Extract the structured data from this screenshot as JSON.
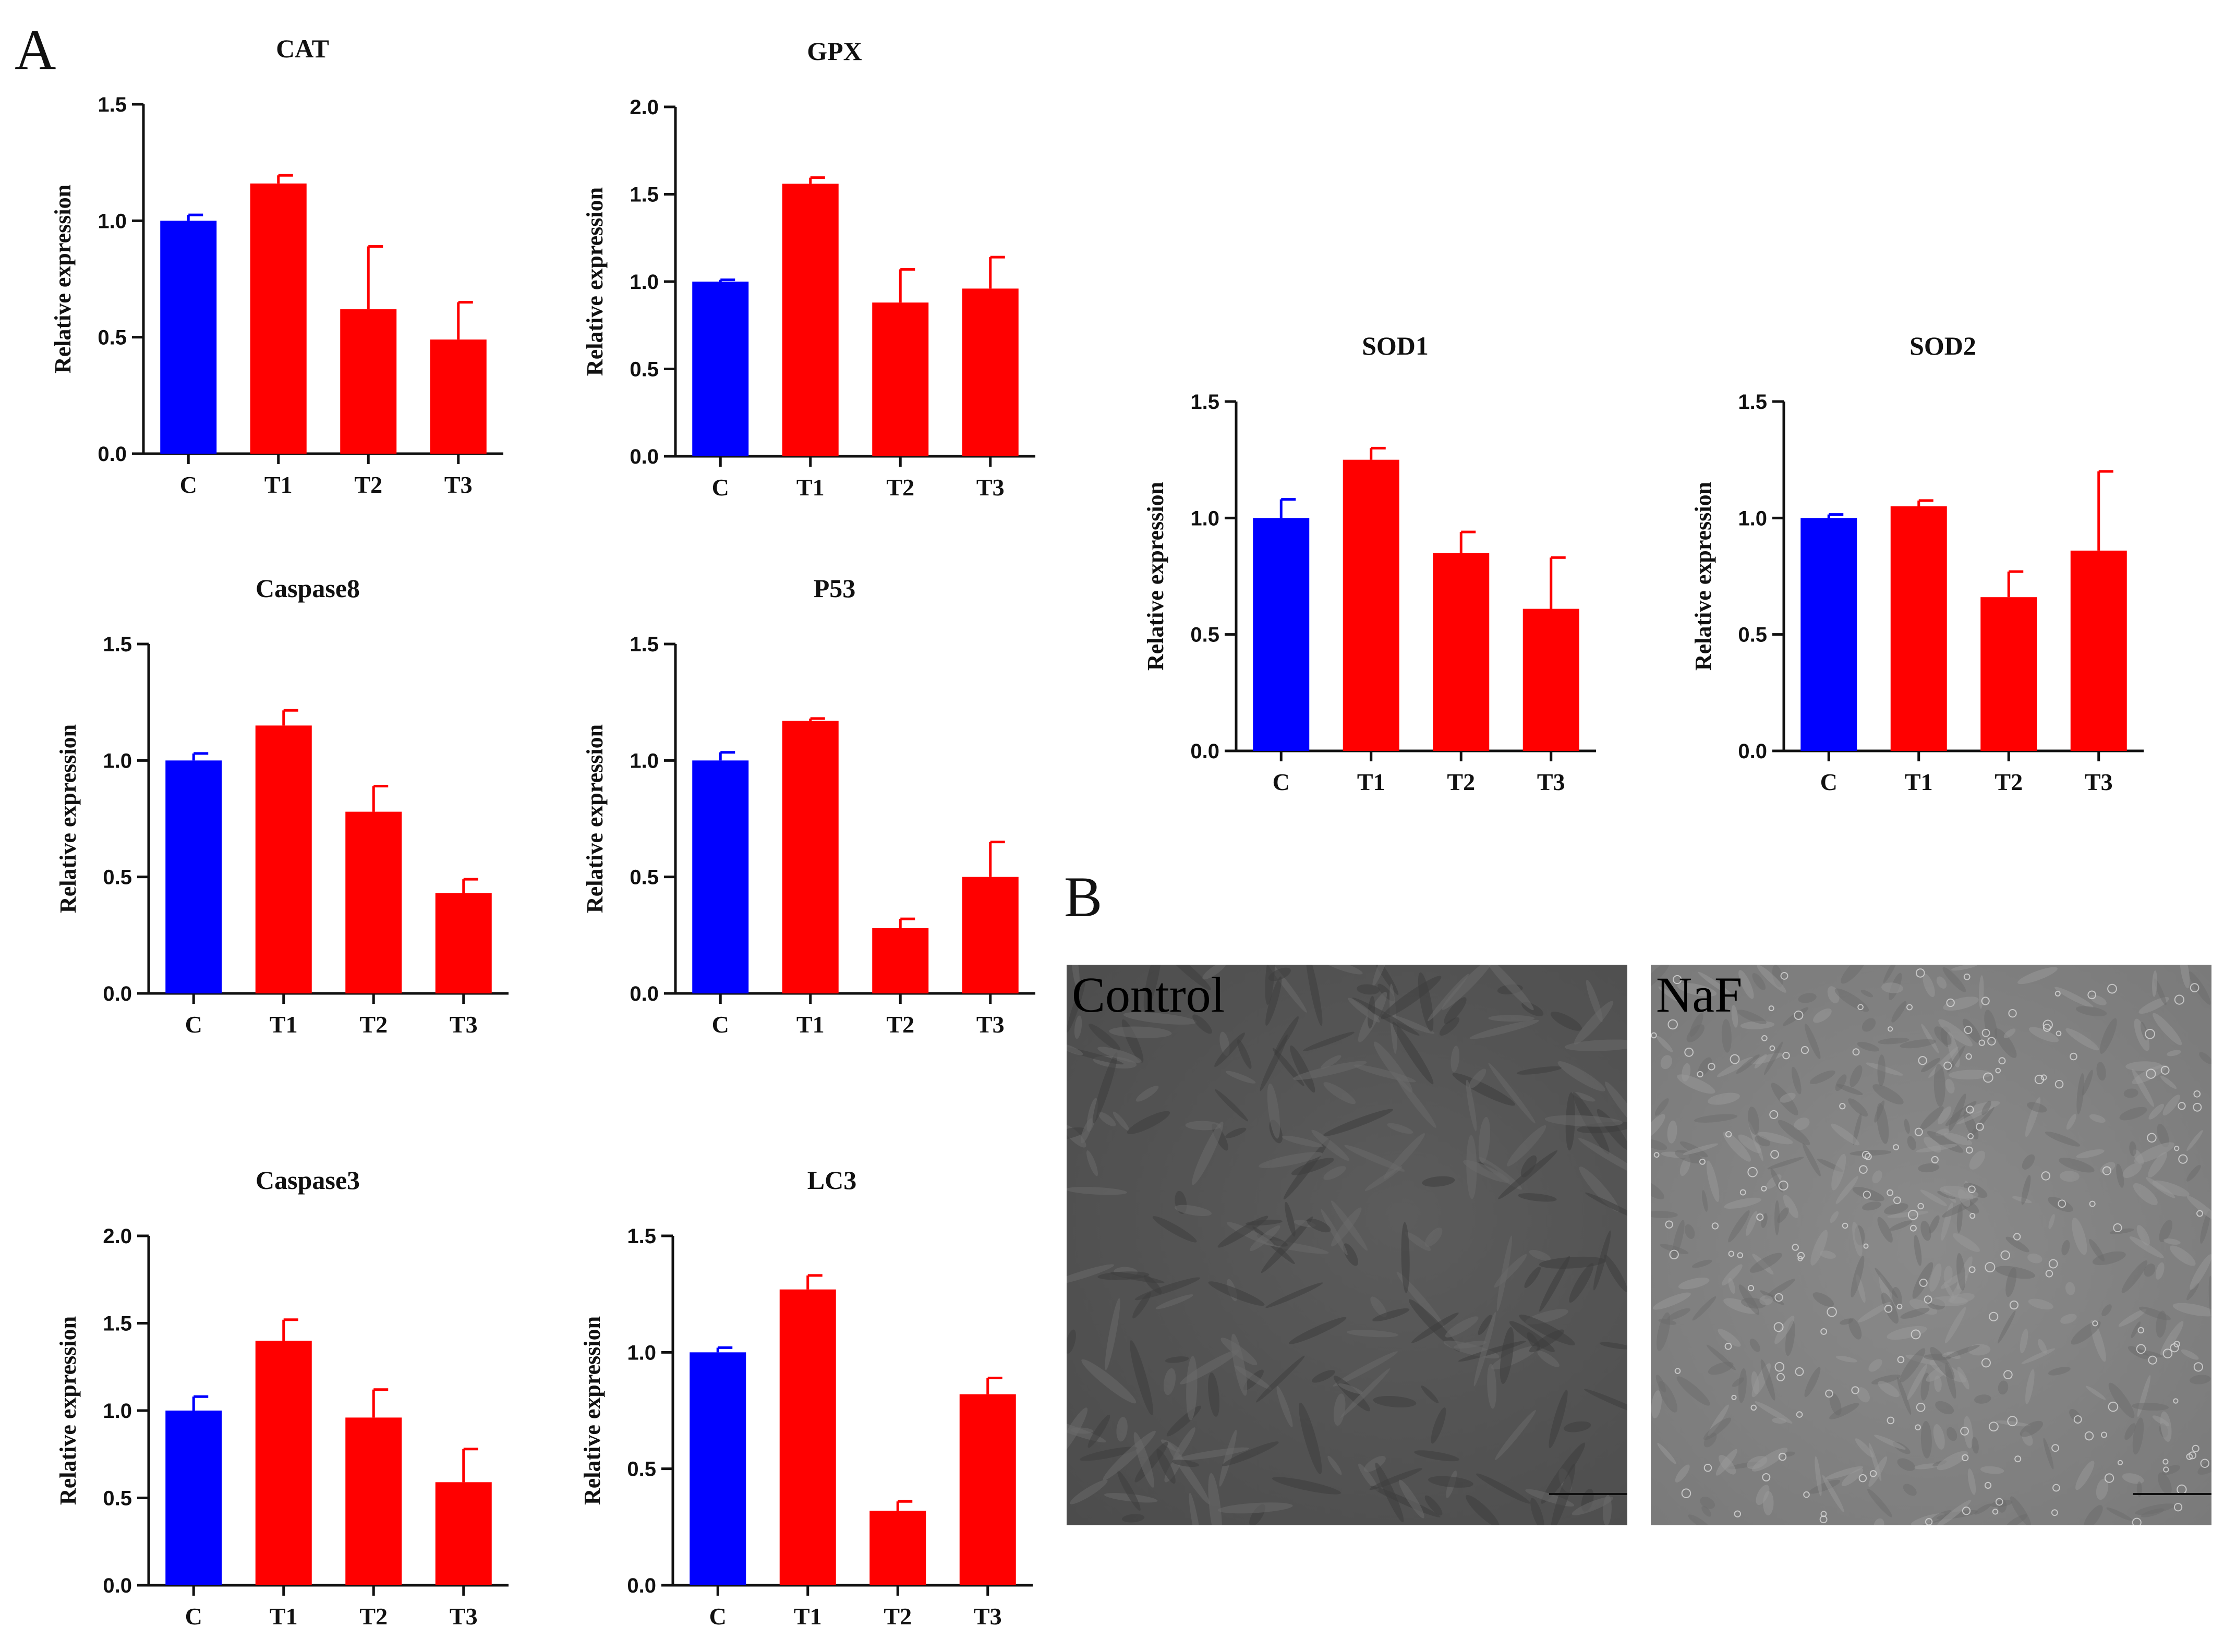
{
  "panels": {
    "a": "A",
    "b": "B"
  },
  "colors": {
    "control_bar": "#0000ff",
    "treatment_bar": "#ff0000",
    "axis": "#111111"
  },
  "chart_data": [
    {
      "id": "cat",
      "type": "bar",
      "title": "CAT",
      "ylabel": "Relative expression",
      "categories": [
        "C",
        "T1",
        "T2",
        "T3"
      ],
      "values": [
        1.0,
        1.16,
        0.62,
        0.49
      ],
      "errors": [
        0.025,
        0.035,
        0.27,
        0.16
      ],
      "ylim": [
        0,
        1.5
      ],
      "yticks": [
        "0.0",
        "0.5",
        "1.0",
        "1.5"
      ]
    },
    {
      "id": "gpx",
      "type": "bar",
      "title": "GPX",
      "ylabel": "Relative expression",
      "categories": [
        "C",
        "T1",
        "T2",
        "T3"
      ],
      "values": [
        1.0,
        1.56,
        0.88,
        0.96
      ],
      "errors": [
        0.01,
        0.035,
        0.19,
        0.18
      ],
      "ylim": [
        0,
        2.0
      ],
      "yticks": [
        "0.0",
        "0.5",
        "1.0",
        "1.5",
        "2.0"
      ]
    },
    {
      "id": "sod1",
      "type": "bar",
      "title": "SOD1",
      "ylabel": "Relative expression",
      "categories": [
        "C",
        "T1",
        "T2",
        "T3"
      ],
      "values": [
        1.0,
        1.25,
        0.85,
        0.61
      ],
      "errors": [
        0.08,
        0.05,
        0.09,
        0.22
      ],
      "ylim": [
        0,
        1.5
      ],
      "yticks": [
        "0.0",
        "0.5",
        "1.0",
        "1.5"
      ]
    },
    {
      "id": "sod2",
      "type": "bar",
      "title": "SOD2",
      "ylabel": "Relative expression",
      "categories": [
        "C",
        "T1",
        "T2",
        "T3"
      ],
      "values": [
        1.0,
        1.05,
        0.66,
        0.86
      ],
      "errors": [
        0.015,
        0.025,
        0.11,
        0.34
      ],
      "ylim": [
        0,
        1.5
      ],
      "yticks": [
        "0.0",
        "0.5",
        "1.0",
        "1.5"
      ]
    },
    {
      "id": "casp8",
      "type": "bar",
      "title": "Caspase8",
      "ylabel": "Relative expression",
      "categories": [
        "C",
        "T1",
        "T2",
        "T3"
      ],
      "values": [
        1.0,
        1.15,
        0.78,
        0.43
      ],
      "errors": [
        0.03,
        0.065,
        0.11,
        0.06
      ],
      "ylim": [
        0,
        1.5
      ],
      "yticks": [
        "0.0",
        "0.5",
        "1.0",
        "1.5"
      ]
    },
    {
      "id": "p53",
      "type": "bar",
      "title": "P53",
      "ylabel": "Relative expression",
      "categories": [
        "C",
        "T1",
        "T2",
        "T3"
      ],
      "values": [
        1.0,
        1.17,
        0.28,
        0.5
      ],
      "errors": [
        0.035,
        0.01,
        0.04,
        0.15
      ],
      "ylim": [
        0,
        1.5
      ],
      "yticks": [
        "0.0",
        "0.5",
        "1.0",
        "1.5"
      ]
    },
    {
      "id": "casp3",
      "type": "bar",
      "title": "Caspase3",
      "ylabel": "Relative expression",
      "categories": [
        "C",
        "T1",
        "T2",
        "T3"
      ],
      "values": [
        1.0,
        1.4,
        0.96,
        0.59
      ],
      "errors": [
        0.08,
        0.12,
        0.16,
        0.19
      ],
      "ylim": [
        0,
        2.0
      ],
      "yticks": [
        "0.0",
        "0.5",
        "1.0",
        "1.5",
        "2.0"
      ]
    },
    {
      "id": "lc3",
      "type": "bar",
      "title": "LC3",
      "ylabel": "Relative expression",
      "categories": [
        "C",
        "T1",
        "T2",
        "T3"
      ],
      "values": [
        1.0,
        1.27,
        0.32,
        0.82
      ],
      "errors": [
        0.02,
        0.06,
        0.04,
        0.07
      ],
      "ylim": [
        0,
        1.5
      ],
      "yticks": [
        "0.0",
        "0.5",
        "1.0",
        "1.5"
      ]
    }
  ],
  "micrographs": {
    "control_label": "Control",
    "naf_label": "NaF"
  }
}
